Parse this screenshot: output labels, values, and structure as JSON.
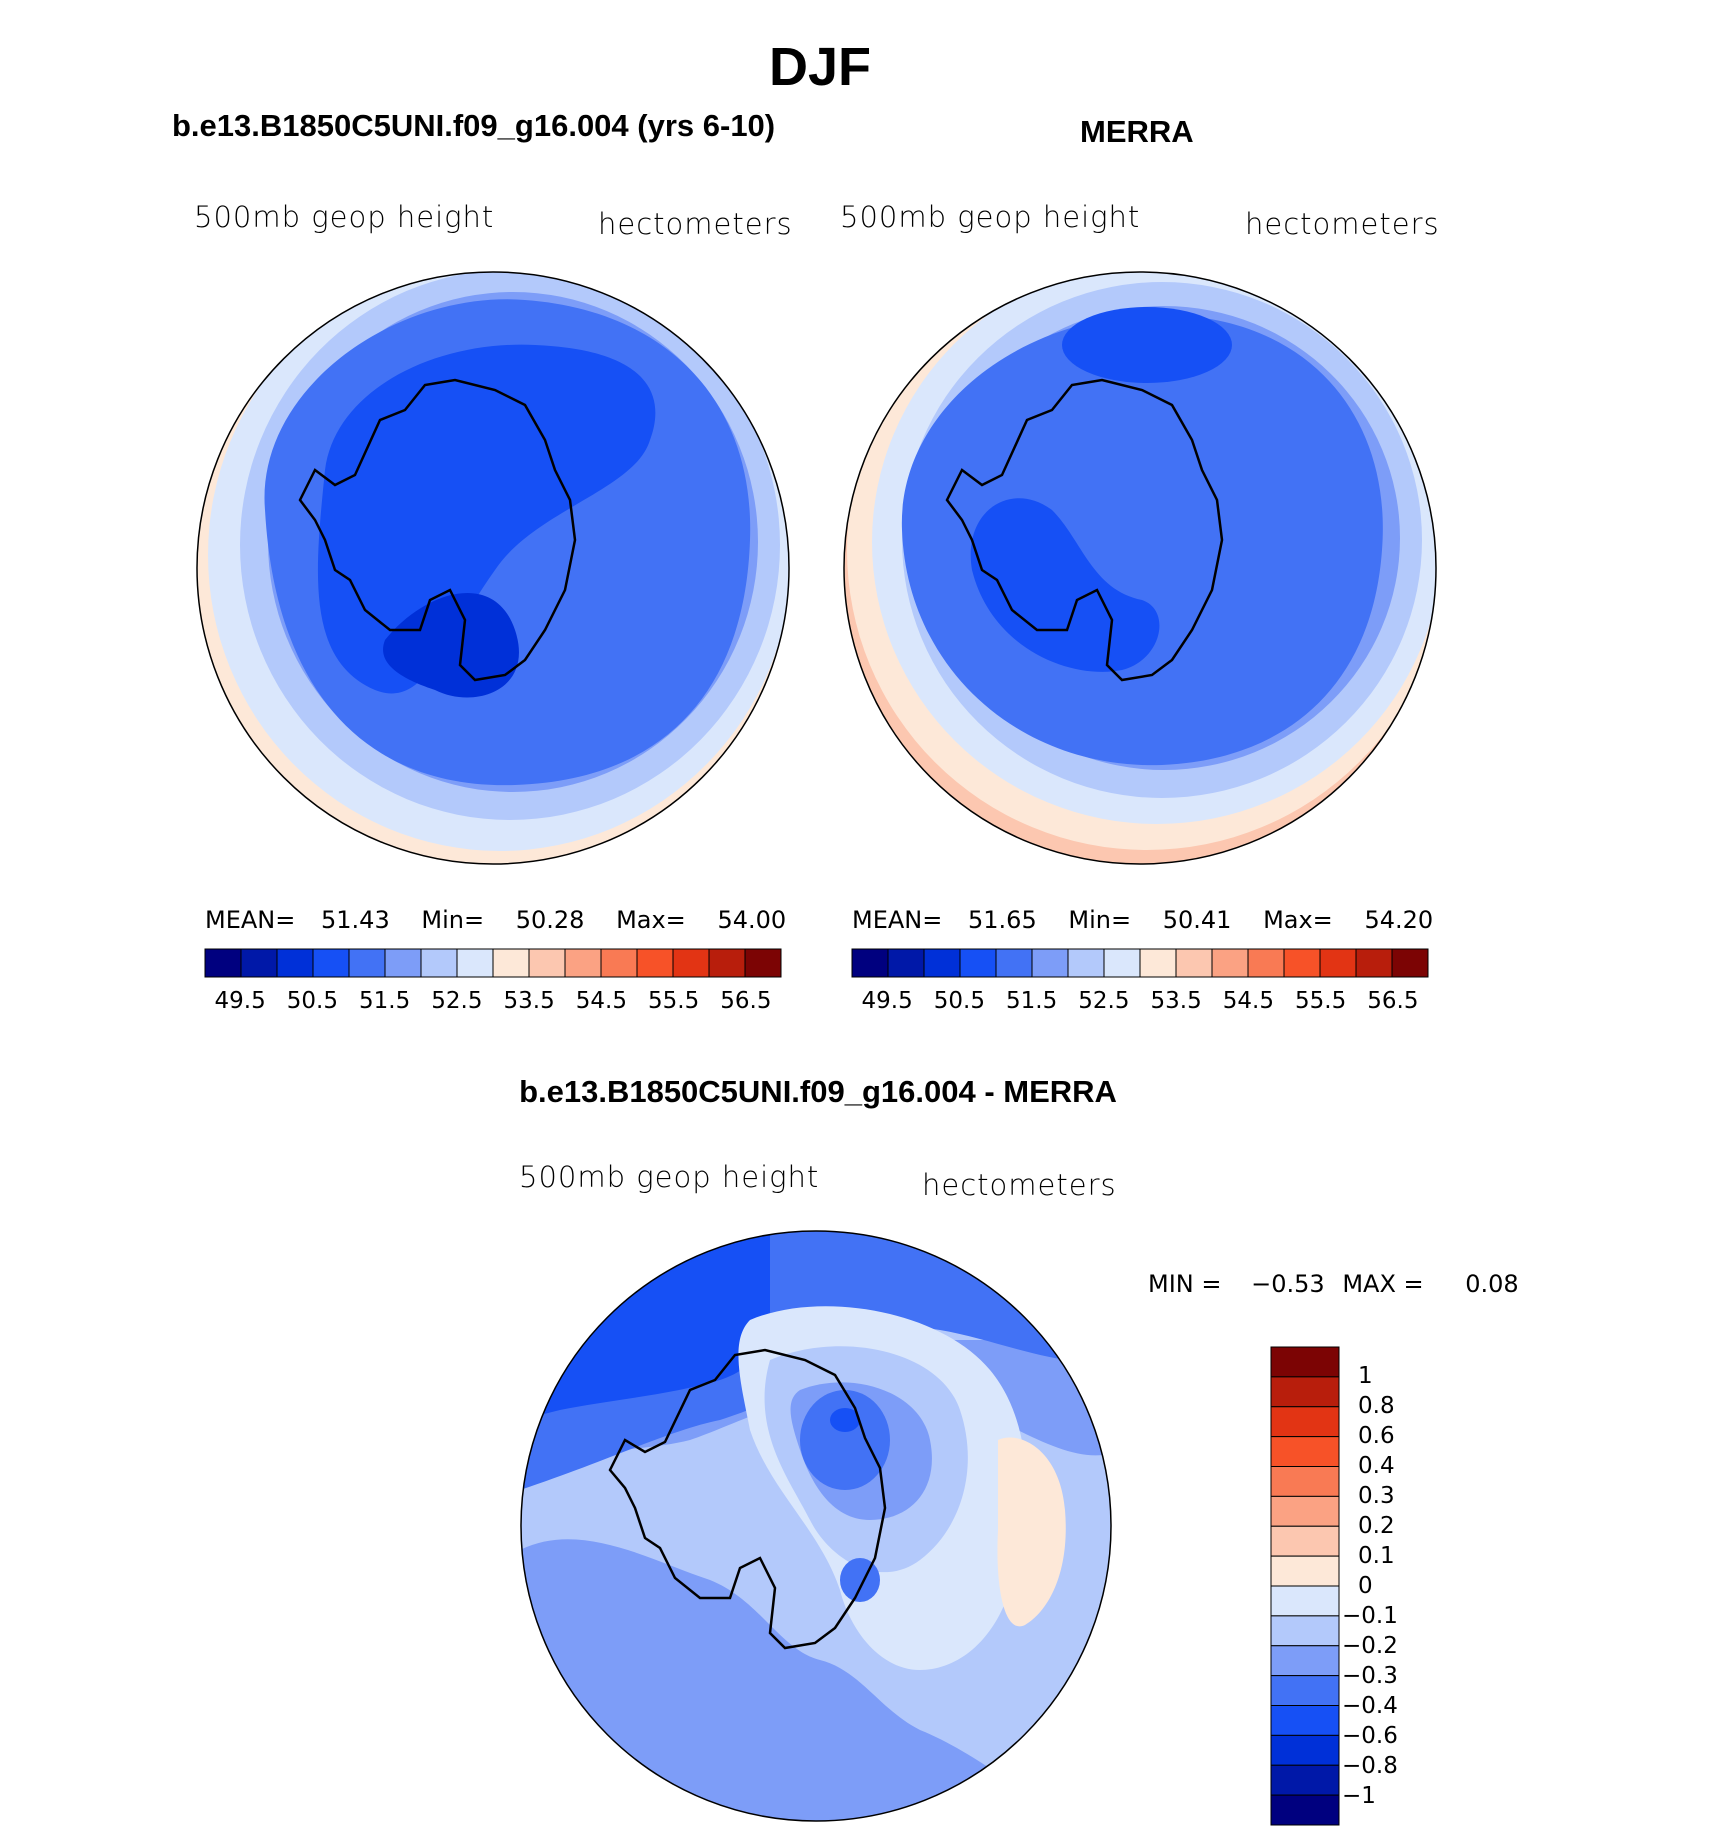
{
  "title": "DJF",
  "chart_data": [
    {
      "type": "heatmap",
      "projection": "south-polar-stereographic",
      "title": "b.e13.B1850C5UNI.f09_g16.004 (yrs 6-10)",
      "left_label": "500mb geop height",
      "right_label": "hectometers",
      "stats": {
        "mean_label": "MEAN=",
        "mean": "51.43",
        "min_label": "Min=",
        "min": "50.28",
        "max_label": "Max=",
        "max": "54.00"
      },
      "contour_levels": [
        "49.5",
        "50.5",
        "51.5",
        "52.5",
        "53.5",
        "54.5",
        "55.5",
        "56.5"
      ],
      "colorbar_colors": [
        "#00007f",
        "#0018a8",
        "#0030d8",
        "#1650f5",
        "#4272f5",
        "#7d9df8",
        "#b3c9fb",
        "#dae7fc",
        "#fde8d8",
        "#fcc7b0",
        "#fba283",
        "#f97a54",
        "#f75228",
        "#e23414",
        "#b81e0c",
        "#7c0404"
      ]
    },
    {
      "type": "heatmap",
      "projection": "south-polar-stereographic",
      "title": "MERRA",
      "left_label": "500mb geop height",
      "right_label": "hectometers",
      "stats": {
        "mean_label": "MEAN=",
        "mean": "51.65",
        "min_label": "Min=",
        "min": "50.41",
        "max_label": "Max=",
        "max": "54.20"
      },
      "contour_levels": [
        "49.5",
        "50.5",
        "51.5",
        "52.5",
        "53.5",
        "54.5",
        "55.5",
        "56.5"
      ],
      "colorbar_colors": [
        "#00007f",
        "#0018a8",
        "#0030d8",
        "#1650f5",
        "#4272f5",
        "#7d9df8",
        "#b3c9fb",
        "#dae7fc",
        "#fde8d8",
        "#fcc7b0",
        "#fba283",
        "#f97a54",
        "#f75228",
        "#e23414",
        "#b81e0c",
        "#7c0404"
      ]
    },
    {
      "type": "heatmap",
      "projection": "south-polar-stereographic",
      "title": "b.e13.B1850C5UNI.f09_g16.004 - MERRA",
      "left_label": "500mb geop height",
      "right_label": "hectometers",
      "stats": {
        "min_label": "MIN =",
        "min": "−0.53",
        "max_label": "MAX =",
        "max": "0.08"
      },
      "contour_levels": [
        "1",
        "0.8",
        "0.6",
        "0.4",
        "0.3",
        "0.2",
        "0.1",
        "0",
        "−0.1",
        "−0.2",
        "−0.3",
        "−0.4",
        "−0.6",
        "−0.8",
        "−1"
      ],
      "colorbar_colors": [
        "#7c0404",
        "#b81e0c",
        "#e23414",
        "#f75228",
        "#f97a54",
        "#fba283",
        "#fcc7b0",
        "#fde8d8",
        "#dae7fc",
        "#b3c9fb",
        "#7d9df8",
        "#4272f5",
        "#1650f5",
        "#0030d8",
        "#0018a8",
        "#00007f"
      ]
    }
  ]
}
